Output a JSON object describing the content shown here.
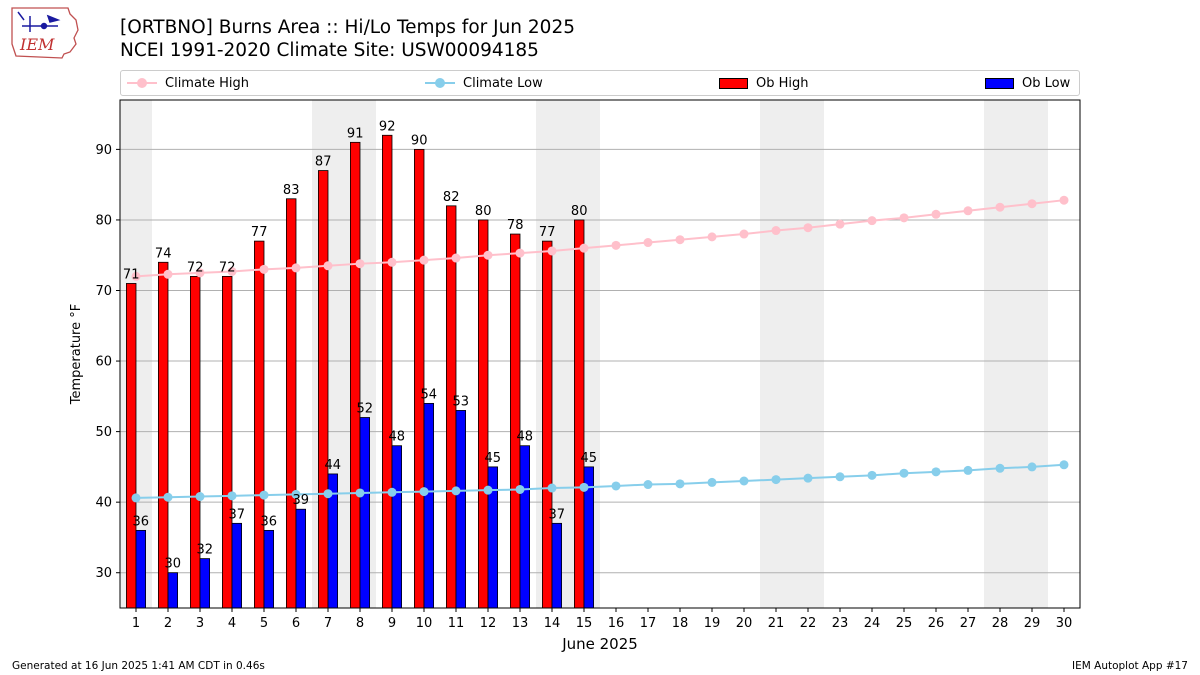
{
  "logo_text": "IEM",
  "title_line1": "[ORTBNO] Burns Area :: Hi/Lo Temps for Jun 2025",
  "title_line2": "NCEI 1991-2020 Climate Site: USW00094185",
  "footer_left": "Generated at 16 Jun 2025 1:41 AM CDT in 0.46s",
  "footer_right": "IEM Autoplot App #17",
  "colors": {
    "climate_high": "#ffc0cb",
    "climate_low": "#87ceeb",
    "ob_high": "#ff0000",
    "ob_low": "#0000ff",
    "weekend_shade": "#eeeeee",
    "grid": "#b0b0b0"
  },
  "chart_data": {
    "type": "bar",
    "xlabel": "June 2025",
    "ylabel": "Temperature °F",
    "ylim": [
      25,
      97
    ],
    "yticks": [
      30,
      40,
      50,
      60,
      70,
      80,
      90
    ],
    "grid": "horizontal",
    "legend_position": "top",
    "days": [
      1,
      2,
      3,
      4,
      5,
      6,
      7,
      8,
      9,
      10,
      11,
      12,
      13,
      14,
      15,
      16,
      17,
      18,
      19,
      20,
      21,
      22,
      23,
      24,
      25,
      26,
      27,
      28,
      29,
      30
    ],
    "weekend_days": [
      1,
      7,
      8,
      14,
      15,
      21,
      22,
      28,
      29
    ],
    "series": [
      {
        "name": "Climate High",
        "kind": "line",
        "values": [
          72.0,
          72.3,
          72.5,
          72.7,
          73.0,
          73.2,
          73.5,
          73.8,
          74.0,
          74.3,
          74.6,
          75.0,
          75.3,
          75.6,
          76.0,
          76.4,
          76.8,
          77.2,
          77.6,
          78.0,
          78.5,
          78.9,
          79.4,
          79.9,
          80.3,
          80.8,
          81.3,
          81.8,
          82.3,
          82.8
        ]
      },
      {
        "name": "Climate Low",
        "kind": "line",
        "values": [
          40.6,
          40.7,
          40.8,
          40.9,
          41.0,
          41.1,
          41.2,
          41.3,
          41.4,
          41.5,
          41.6,
          41.7,
          41.8,
          42.0,
          42.1,
          42.3,
          42.5,
          42.6,
          42.8,
          43.0,
          43.2,
          43.4,
          43.6,
          43.8,
          44.1,
          44.3,
          44.5,
          44.8,
          45.0,
          45.3
        ]
      },
      {
        "name": "Ob High",
        "kind": "bar",
        "values": [
          71,
          74,
          72,
          72,
          77,
          83,
          87,
          91,
          92,
          90,
          82,
          80,
          78,
          77,
          80
        ]
      },
      {
        "name": "Ob Low",
        "kind": "bar",
        "values": [
          36,
          30,
          32,
          37,
          36,
          39,
          44,
          52,
          48,
          54,
          53,
          45,
          48,
          37,
          45
        ]
      }
    ]
  }
}
